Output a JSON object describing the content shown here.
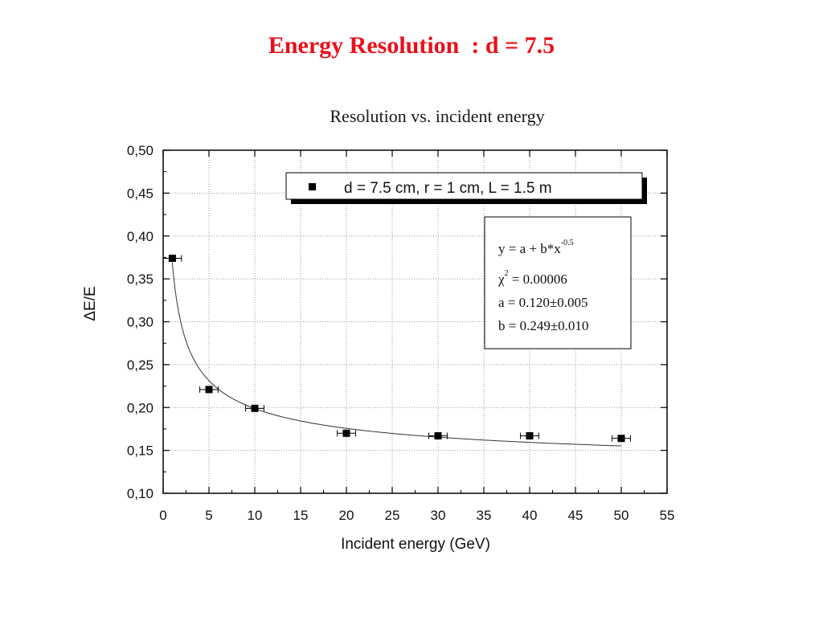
{
  "slide": {
    "title": "Energy Resolution  : d = 7.5"
  },
  "chart_data": {
    "type": "scatter",
    "title": "Resolution vs. incident energy",
    "xlabel": "Incident energy (GeV)",
    "ylabel": "ΔE/E",
    "xlim": [
      0,
      55
    ],
    "ylim": [
      0.1,
      0.5
    ],
    "x_ticks": [
      "0",
      "5",
      "10",
      "15",
      "20",
      "25",
      "30",
      "35",
      "40",
      "45",
      "50",
      "55"
    ],
    "y_ticks": [
      "0,10",
      "0,15",
      "0,20",
      "0,25",
      "0,30",
      "0,35",
      "0,40",
      "0,45",
      "0,50"
    ],
    "grid": true,
    "series": [
      {
        "name": "d = 7.5 cm, r = 1 cm, L = 1.5 m",
        "marker": "square",
        "color": "#000000",
        "x": [
          1,
          5,
          10,
          20,
          30,
          40,
          50
        ],
        "y": [
          0.374,
          0.221,
          0.199,
          0.17,
          0.167,
          0.167,
          0.164
        ],
        "x_err": [
          1,
          1,
          1,
          1,
          1,
          1,
          1
        ]
      }
    ],
    "fit": {
      "model": "y = a + b*x^-0.5",
      "a": 0.12,
      "b": 0.249,
      "x_range": [
        1,
        50
      ],
      "lines": {
        "equation_main": "y = a + b*x",
        "equation_exp": "-0.5",
        "chi_symbol": "χ",
        "chi_exp": "2",
        "chi_value": " = 0.00006",
        "a_line": "a = 0.120±0.005",
        "b_line": "b = 0.249±0.010"
      }
    },
    "legend_position": "top-right"
  }
}
